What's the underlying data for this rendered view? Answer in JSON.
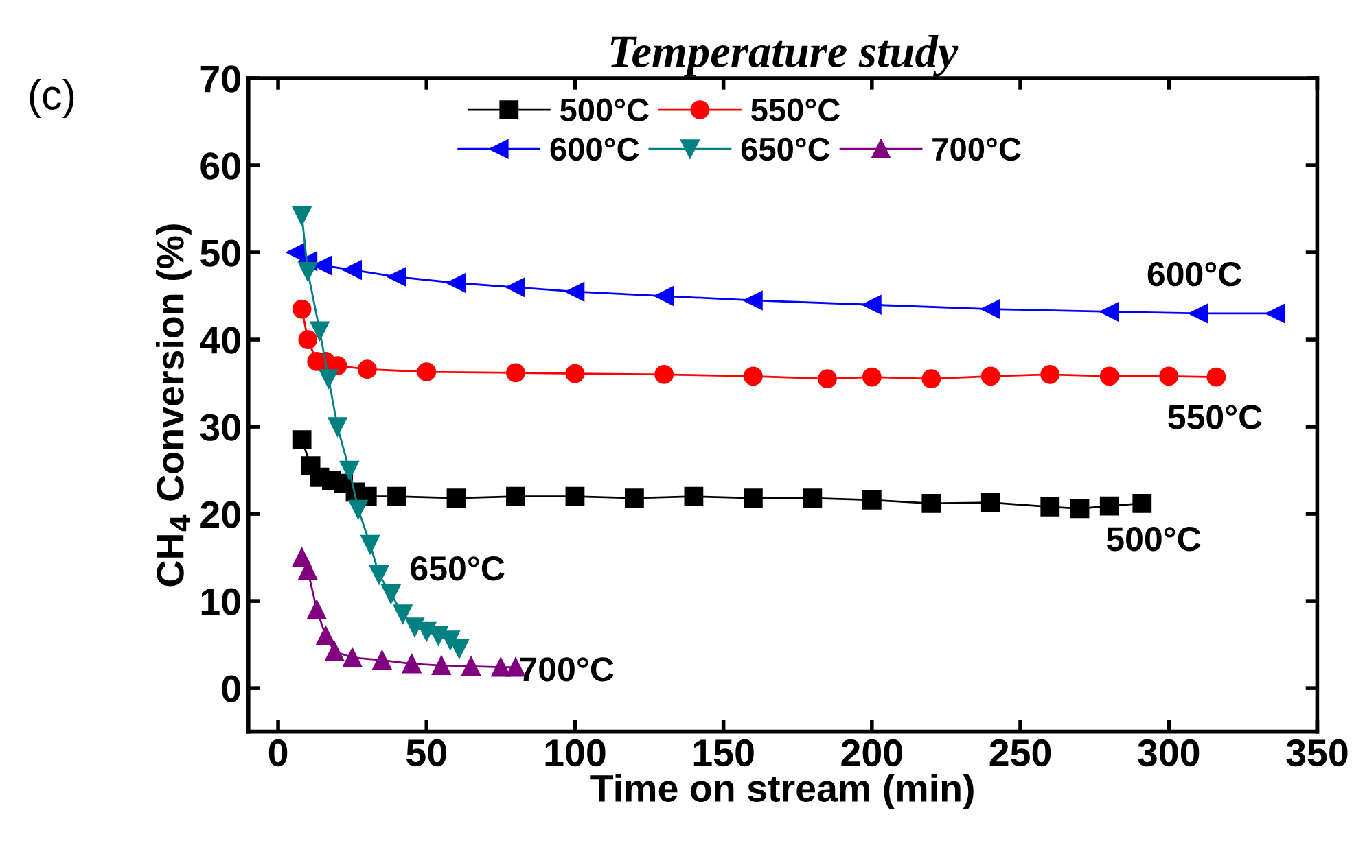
{
  "chart_data": {
    "type": "line",
    "title": "Temperature study",
    "xlabel": "Time on stream (min)",
    "ylabel": "CH$_{4}$ Conversion (%)",
    "xlim": [
      -10,
      350
    ],
    "xticks": [
      0,
      50,
      100,
      150,
      200,
      250,
      300,
      350
    ],
    "ylim": [
      -5,
      70
    ],
    "yticks": [
      0,
      10,
      20,
      30,
      40,
      50,
      60,
      70
    ],
    "legend": "top",
    "grid": false,
    "annotations": [
      "(c)",
      "600°C",
      "550°C",
      "500°C",
      "650°C",
      "700°C"
    ],
    "series": [
      {
        "name": "500°C",
        "color": "#000000",
        "marker": "square",
        "x": [
          8,
          11,
          14,
          18,
          22,
          26,
          30,
          40,
          60,
          80,
          100,
          120,
          140,
          160,
          180,
          200,
          220,
          240,
          260,
          270,
          280,
          291
        ],
        "values": [
          28.5,
          25.5,
          24.2,
          23.8,
          23.5,
          22.5,
          22,
          22,
          21.8,
          22,
          22,
          21.8,
          22,
          21.8,
          21.8,
          21.6,
          21.2,
          21.3,
          20.8,
          20.6,
          20.9,
          21.2
        ]
      },
      {
        "name": "550°C",
        "color": "#ff0000",
        "marker": "circle",
        "x": [
          8,
          10,
          13,
          16,
          20,
          30,
          50,
          80,
          100,
          130,
          160,
          185,
          200,
          220,
          240,
          260,
          280,
          300,
          316
        ],
        "values": [
          43.5,
          40,
          37.5,
          37.5,
          37,
          36.6,
          36.3,
          36.2,
          36.1,
          36,
          35.8,
          35.5,
          35.7,
          35.5,
          35.8,
          36,
          35.8,
          35.8,
          35.7
        ]
      },
      {
        "name": "600°C",
        "color": "#0000ff",
        "marker": "triangle_left",
        "x": [
          6,
          10,
          15,
          25,
          40,
          60,
          80,
          100,
          130,
          160,
          200,
          240,
          280,
          310,
          336
        ],
        "values": [
          50,
          49,
          48.5,
          48,
          47.2,
          46.5,
          46,
          45.5,
          45,
          44.5,
          44,
          43.5,
          43.2,
          43,
          43
        ]
      },
      {
        "name": "650°C",
        "color": "#008080",
        "marker": "triangle_down",
        "x": [
          8,
          10,
          14,
          17,
          20,
          24,
          27,
          31,
          34,
          38,
          42,
          46,
          50,
          54,
          58,
          61
        ],
        "values": [
          54.2,
          47.8,
          41,
          35.5,
          30,
          25,
          20.5,
          16.5,
          13,
          10.8,
          8.5,
          7,
          6.5,
          6,
          5.5,
          4.5
        ]
      },
      {
        "name": "700°C",
        "color": "#800080",
        "marker": "triangle",
        "x": [
          8,
          10,
          13,
          16,
          19,
          25,
          35,
          45,
          55,
          65,
          75,
          80
        ],
        "values": [
          15,
          13.5,
          9,
          6,
          4.2,
          3.5,
          3.2,
          2.8,
          2.6,
          2.5,
          2.4,
          2.4
        ]
      }
    ]
  }
}
